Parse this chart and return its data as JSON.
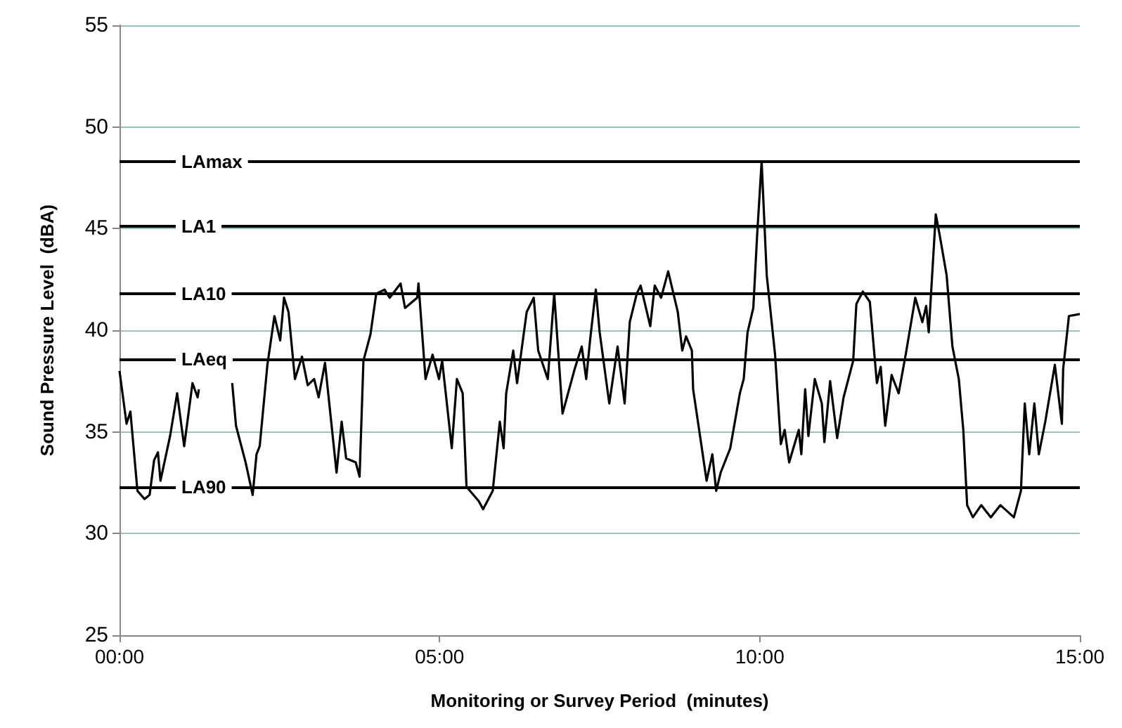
{
  "chart_data": {
    "type": "line",
    "xlabel": "Monitoring or Survey Period  (minutes)",
    "ylabel": "Sound Pressure Level  (dBA)",
    "xlim": [
      0,
      15
    ],
    "xticks": [
      {
        "value": 0,
        "label": "00:00"
      },
      {
        "value": 5,
        "label": "05:00"
      },
      {
        "value": 10,
        "label": "10:00"
      },
      {
        "value": 15,
        "label": "15:00"
      }
    ],
    "ylim": [
      25,
      55
    ],
    "yticks": [
      25,
      30,
      35,
      40,
      45,
      50,
      55
    ],
    "grid": "y",
    "marker": "none",
    "line_style": "solid",
    "series": [
      {
        "color": "#000000",
        "x": [
          0,
          0.11,
          0.17,
          0.28,
          0.39,
          0.47,
          0.54,
          0.6,
          0.64,
          0.79,
          0.9,
          1.01,
          1.14,
          1.22,
          1.24,
          1.5,
          1.76,
          1.82,
          1.97,
          2.08,
          2.14,
          2.19,
          2.31,
          2.42,
          2.51,
          2.57,
          2.64,
          2.74,
          2.85,
          2.94,
          3.04,
          3.11,
          3.21,
          3.39,
          3.47,
          3.54,
          3.69,
          3.75,
          3.81,
          3.92,
          4.01,
          4.14,
          4.22,
          4.39,
          4.46,
          4.65,
          4.67,
          4.78,
          4.89,
          4.99,
          5.04,
          5.19,
          5.27,
          5.36,
          5.42,
          5.61,
          5.68,
          5.83,
          5.94,
          6.0,
          6.04,
          6.15,
          6.21,
          6.36,
          6.47,
          6.54,
          6.69,
          6.79,
          6.92,
          7.11,
          7.22,
          7.29,
          7.35,
          7.44,
          7.5,
          7.65,
          7.78,
          7.89,
          7.97,
          8.08,
          8.14,
          8.29,
          8.36,
          8.46,
          8.57,
          8.72,
          8.79,
          8.85,
          8.94,
          8.96,
          9.11,
          9.17,
          9.26,
          9.32,
          9.39,
          9.54,
          9.69,
          9.75,
          9.81,
          9.9,
          9.96,
          10.03,
          10.11,
          10.24,
          10.33,
          10.39,
          10.46,
          10.61,
          10.65,
          10.71,
          10.76,
          10.86,
          10.97,
          11.01,
          11.1,
          11.21,
          11.31,
          11.46,
          11.51,
          11.61,
          11.72,
          11.83,
          11.89,
          11.96,
          12.06,
          12.17,
          12.28,
          12.43,
          12.54,
          12.6,
          12.64,
          12.75,
          12.81,
          12.92,
          13.01,
          13.11,
          13.18,
          13.24,
          13.33,
          13.46,
          13.61,
          13.76,
          13.97,
          14.08,
          14.14,
          14.21,
          14.29,
          14.36,
          14.46,
          14.61,
          14.72,
          14.74,
          14.83,
          15
        ],
        "values": [
          38.0,
          35.4,
          36.0,
          32.1,
          31.7,
          31.9,
          33.6,
          34.0,
          32.6,
          34.8,
          36.9,
          34.3,
          37.4,
          36.7,
          37.1,
          null,
          37.4,
          35.3,
          33.5,
          31.9,
          33.9,
          34.3,
          38.3,
          40.7,
          39.5,
          41.6,
          40.9,
          37.6,
          38.7,
          37.3,
          37.6,
          36.7,
          38.4,
          33.0,
          35.5,
          33.7,
          33.5,
          32.8,
          38.5,
          39.8,
          41.8,
          42.0,
          41.6,
          42.3,
          41.1,
          41.6,
          42.3,
          37.6,
          38.8,
          37.6,
          38.5,
          34.2,
          37.6,
          36.9,
          32.3,
          31.6,
          31.2,
          32.1,
          35.5,
          34.2,
          36.9,
          39.0,
          37.4,
          40.9,
          41.6,
          39.0,
          37.6,
          41.8,
          35.9,
          38.1,
          39.2,
          37.6,
          39.5,
          42.0,
          39.9,
          36.4,
          39.2,
          36.4,
          40.4,
          41.8,
          42.2,
          40.2,
          42.2,
          41.6,
          42.9,
          40.9,
          39.0,
          39.7,
          39.0,
          37.1,
          33.9,
          32.6,
          33.9,
          32.1,
          33.0,
          34.2,
          36.9,
          37.6,
          39.9,
          41.1,
          44.7,
          48.3,
          42.7,
          38.8,
          34.4,
          35.1,
          33.5,
          35.1,
          33.9,
          37.1,
          34.8,
          37.6,
          36.4,
          34.5,
          37.5,
          34.7,
          36.7,
          38.5,
          41.3,
          41.9,
          41.4,
          37.4,
          38.2,
          35.3,
          37.8,
          36.9,
          38.8,
          41.6,
          40.4,
          41.2,
          39.9,
          45.7,
          44.7,
          42.7,
          39.2,
          37.6,
          35.1,
          31.4,
          30.8,
          31.4,
          30.8,
          31.4,
          30.8,
          32.1,
          36.4,
          33.9,
          36.4,
          33.9,
          35.5,
          38.3,
          35.4,
          38.1,
          40.7,
          40.8
        ]
      }
    ],
    "ref_lines": [
      {
        "axis": "y",
        "value": 48.3,
        "label": "LAmax",
        "color": "#000000"
      },
      {
        "axis": "y",
        "value": 45.1,
        "label": "LA1",
        "color": "#000000"
      },
      {
        "axis": "y",
        "value": 41.8,
        "label": "LA10",
        "color": "#000000"
      },
      {
        "axis": "y",
        "value": 38.6,
        "label": "LAeq",
        "color": "#000000"
      },
      {
        "axis": "y",
        "value": 32.3,
        "label": "LA90",
        "color": "#000000"
      }
    ]
  }
}
